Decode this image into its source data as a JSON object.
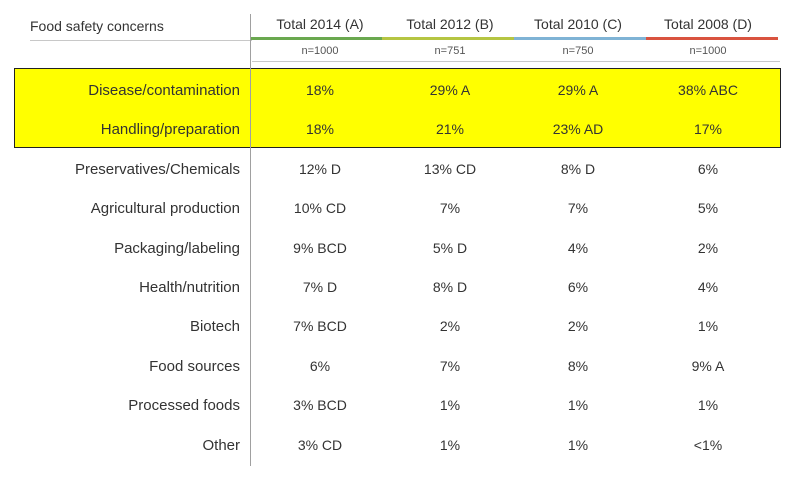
{
  "header": {
    "title": "Food safety concerns",
    "columns": [
      {
        "label": "Total 2014 (A)",
        "n": "n=1000",
        "color": "#6aa84f"
      },
      {
        "label": "Total 2012 (B)",
        "n": "n=751",
        "color": "#b5c542"
      },
      {
        "label": "Total 2010 (C)",
        "n": "n=750",
        "color": "#7fb3d5"
      },
      {
        "label": "Total 2008 (D)",
        "n": "n=1000",
        "color": "#d9533f"
      }
    ]
  },
  "highlight_color": "#ffff00",
  "rows": [
    {
      "label": "Disease/contamination",
      "values": [
        "18%",
        "29% A",
        "29% A",
        "38% ABC"
      ]
    },
    {
      "label": "Handling/preparation",
      "values": [
        "18%",
        "21%",
        "23% AD",
        "17%"
      ]
    },
    {
      "label": "Preservatives/Chemicals",
      "values": [
        "12% D",
        "13% CD",
        "8% D",
        "6%"
      ]
    },
    {
      "label": "Agricultural production",
      "values": [
        "10% CD",
        "7%",
        "7%",
        "5%"
      ]
    },
    {
      "label": "Packaging/labeling",
      "values": [
        "9% BCD",
        "5% D",
        "4%",
        "2%"
      ]
    },
    {
      "label": "Health/nutrition",
      "values": [
        "7% D",
        "8% D",
        "6%",
        "4%"
      ]
    },
    {
      "label": "Biotech",
      "values": [
        "7% BCD",
        "2%",
        "2%",
        "1%"
      ]
    },
    {
      "label": "Food sources",
      "values": [
        "6%",
        "7%",
        "8%",
        "9% A"
      ]
    },
    {
      "label": "Processed foods",
      "values": [
        "3% BCD",
        "1%",
        "1%",
        "1%"
      ]
    },
    {
      "label": "Other",
      "values": [
        "3% CD",
        "1%",
        "1%",
        "<1%"
      ]
    }
  ]
}
